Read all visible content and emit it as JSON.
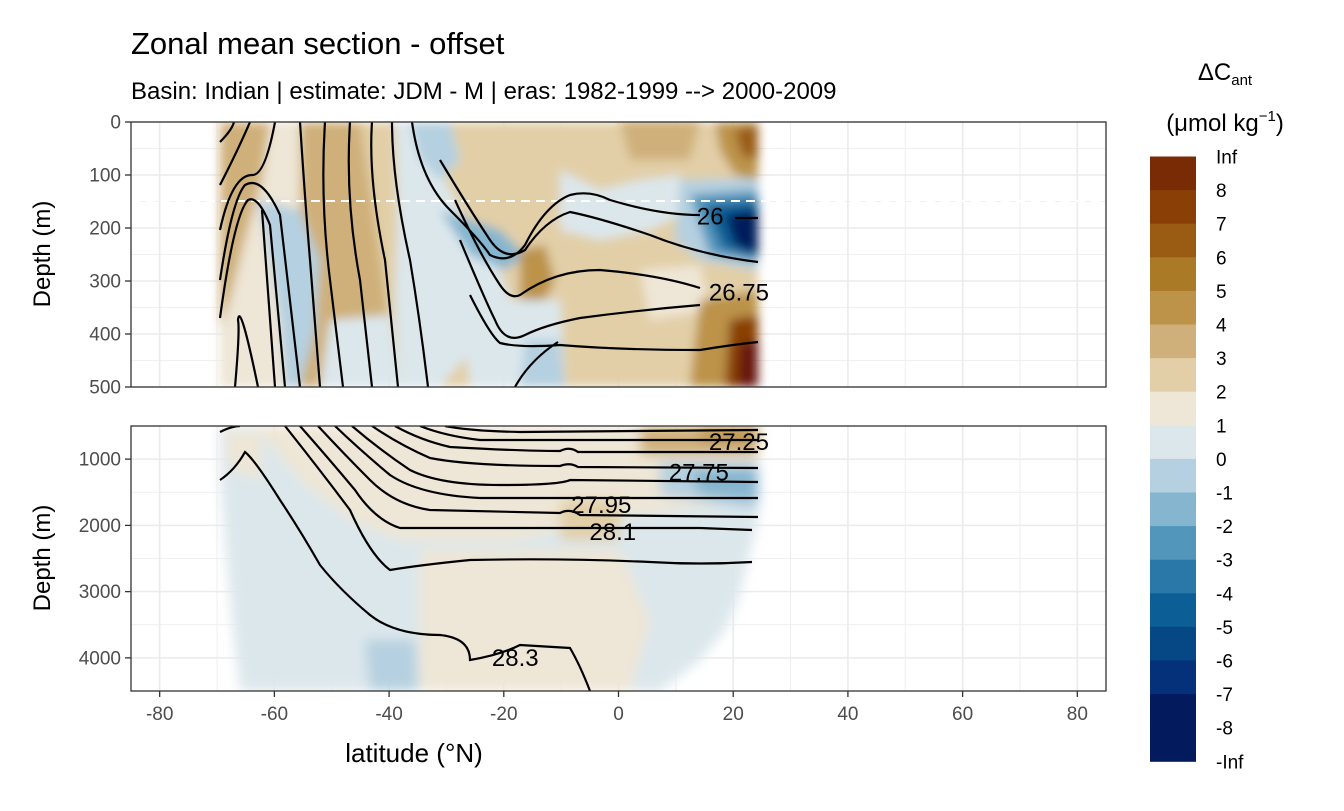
{
  "chart_data": {
    "type": "heatmap",
    "title": "Zonal mean section - offset",
    "subtitle": "Basin: Indian | estimate: JDM - M | eras: 1982-1999 --> 2000-2009",
    "xlabel": "latitude (°N)",
    "ylabel": "Depth (m)",
    "xlim": [
      -85,
      85
    ],
    "x_ticks": [
      "-80",
      "-60",
      "-40",
      "-20",
      "0",
      "20",
      "40",
      "60",
      "80"
    ],
    "data_lat_range": [
      -70,
      24
    ],
    "panels": [
      {
        "name": "upper",
        "ylim": [
          0,
          500
        ],
        "y_ticks": [
          "0",
          "100",
          "200",
          "300",
          "400",
          "500"
        ],
        "dashed_reference_depth": 150
      },
      {
        "name": "lower",
        "ylim": [
          500,
          4500
        ],
        "y_ticks": [
          "1000",
          "2000",
          "3000",
          "4000"
        ]
      }
    ],
    "legend": {
      "title": "ΔC",
      "title_sub": "ant",
      "unit_pre": "(μmol kg",
      "unit_sup": "−1",
      "unit_post": ")",
      "position": "right",
      "bins": [
        {
          "label": "Inf",
          "color": "#67190a"
        },
        {
          "label": "8",
          "color": "#792b06"
        },
        {
          "label": "7",
          "color": "#893f05"
        },
        {
          "label": "6",
          "color": "#9a5c12"
        },
        {
          "label": "5",
          "color": "#ab7a27"
        },
        {
          "label": "4",
          "color": "#bc9348"
        },
        {
          "label": "3",
          "color": "#cfb07a"
        },
        {
          "label": "2",
          "color": "#e2cfa7"
        },
        {
          "label": "1",
          "color": "#eee6d6"
        },
        {
          "label": "0",
          "color": "#dce7ec"
        },
        {
          "label": "-1",
          "color": "#b5d0e0"
        },
        {
          "label": "-2",
          "color": "#85b5cf"
        },
        {
          "label": "-3",
          "color": "#5296bc"
        },
        {
          "label": "-4",
          "color": "#2a78a8"
        },
        {
          "label": "-5",
          "color": "#0c5f96"
        },
        {
          "label": "-6",
          "color": "#054885"
        },
        {
          "label": "-7",
          "color": "#05317a"
        },
        {
          "label": "-8",
          "color": "#031b5c"
        },
        {
          "label": "-Inf",
          "color": "#031b5c"
        }
      ]
    },
    "contour_labels": [
      {
        "text": "26",
        "lat": 16,
        "depth": 178
      },
      {
        "text": "26.75",
        "lat": 21,
        "depth": 322
      },
      {
        "text": "27.25",
        "lat": 21,
        "depth": 740
      },
      {
        "text": "27.75",
        "lat": 14,
        "depth": 1200
      },
      {
        "text": "27.95",
        "lat": -3,
        "depth": 1690
      },
      {
        "text": "28.1",
        "lat": -1,
        "depth": 2100
      },
      {
        "text": "28.3",
        "lat": -18,
        "depth": 4000
      }
    ]
  }
}
